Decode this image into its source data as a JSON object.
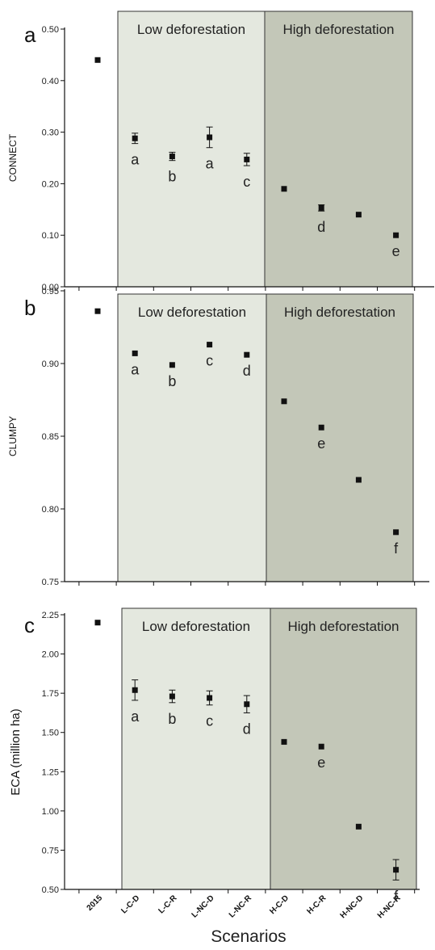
{
  "categories": [
    "2015",
    "L-C-D",
    "L-C-R",
    "L-NC-D",
    "L-NC-R",
    "H-C-D",
    "H-C-R",
    "H-NC-D",
    "H-NC-R"
  ],
  "xlabel": "Scenarios",
  "band_labels": {
    "low": "Low deforestation",
    "high": "High deforestation"
  },
  "colors": {
    "low_band": "#e4e8df",
    "high_band": "#c3c7b8",
    "marker": "#111111",
    "axis": "#111111"
  },
  "chart_data": [
    {
      "type": "scatter",
      "panel": "a",
      "title": "",
      "ylabel": "CONNECT",
      "ylim": [
        0.0,
        0.5
      ],
      "yticks": [
        "0.00",
        "0.10",
        "0.20",
        "0.30",
        "0.40",
        "0.50"
      ],
      "categories": [
        "2015",
        "L-C-D",
        "L-C-R",
        "L-NC-D",
        "L-NC-R",
        "H-C-D",
        "H-C-R",
        "H-NC-D",
        "H-NC-R"
      ],
      "values": [
        0.44,
        0.288,
        0.253,
        0.29,
        0.247,
        0.19,
        0.153,
        0.14,
        0.1
      ],
      "errors": [
        0,
        0.01,
        0.008,
        0.02,
        0.012,
        0,
        0.006,
        0,
        0
      ],
      "letters": [
        "",
        "a",
        "b",
        "a",
        "c",
        "",
        "d",
        "",
        "e"
      ],
      "low_band": [
        1,
        4
      ],
      "high_band": [
        5,
        8
      ],
      "grid": false
    },
    {
      "type": "scatter",
      "panel": "b",
      "title": "",
      "ylabel": "CLUMPY",
      "ylim": [
        0.75,
        0.95
      ],
      "yticks": [
        "0.75",
        "0.80",
        "0.85",
        "0.90",
        "0.95"
      ],
      "categories": [
        "2015",
        "L-C-D",
        "L-C-R",
        "L-NC-D",
        "L-NC-R",
        "H-C-D",
        "H-C-R",
        "H-NC-D",
        "H-NC-R"
      ],
      "values": [
        0.936,
        0.907,
        0.899,
        0.913,
        0.906,
        0.874,
        0.856,
        0.82,
        0.784
      ],
      "errors": [
        0,
        0,
        0,
        0,
        0,
        0,
        0,
        0,
        0
      ],
      "letters": [
        "",
        "a",
        "b",
        "c",
        "d",
        "",
        "e",
        "",
        "f"
      ],
      "low_band": [
        1,
        4
      ],
      "high_band": [
        5,
        8
      ],
      "grid": false
    },
    {
      "type": "scatter",
      "panel": "c",
      "title": "",
      "ylabel": "ECA (million ha)",
      "ylim": [
        0.5,
        2.25
      ],
      "yticks": [
        "0.50",
        "0.75",
        "1.00",
        "1.25",
        "1.50",
        "1.75",
        "2.00",
        "2.25"
      ],
      "categories": [
        "2015",
        "L-C-D",
        "L-C-R",
        "L-NC-D",
        "L-NC-R",
        "H-C-D",
        "H-C-R",
        "H-NC-D",
        "H-NC-R"
      ],
      "values": [
        2.2,
        1.77,
        1.73,
        1.72,
        1.68,
        1.44,
        1.41,
        0.9,
        0.625
      ],
      "errors": [
        0,
        0.065,
        0.04,
        0.045,
        0.055,
        0,
        0,
        0,
        0.065
      ],
      "letters": [
        "",
        "a",
        "b",
        "c",
        "d",
        "",
        "e",
        "",
        "f"
      ],
      "low_band": [
        1,
        4
      ],
      "high_band": [
        5,
        8
      ],
      "grid": false
    }
  ]
}
